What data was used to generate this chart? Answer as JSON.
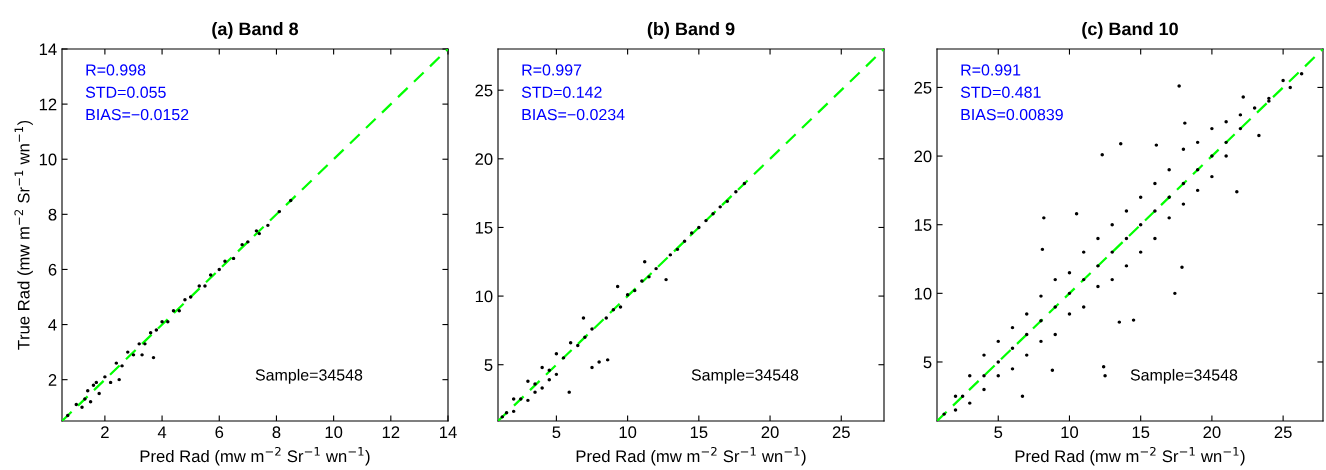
{
  "chart_data": [
    {
      "type": "scatter",
      "title": "(a) Band 8",
      "xlabel": "Pred Rad (mw m$^{−2}$ Sr$^{−1}$ wn$^{−1}$)",
      "ylabel": "True Rad (mw m$^{−2}$ Sr$^{−1}$ wn$^{−1}$)",
      "xlim": [
        0.5,
        14
      ],
      "ylim": [
        0.5,
        14
      ],
      "xticks": [
        2,
        4,
        6,
        8,
        10,
        12,
        14
      ],
      "yticks": [
        2,
        4,
        6,
        8,
        10,
        12,
        14
      ],
      "grid": false,
      "legend": false,
      "annotations": [
        "R=0.998",
        "STD=0.055",
        "BIAS=−0.0152",
        "Sample=34548"
      ],
      "series": [
        {
          "type": "scatter",
          "marker": "circle",
          "color": "#000000",
          "x": [
            0.7,
            1.0,
            1.2,
            1.3,
            1.4,
            1.5,
            1.6,
            1.7,
            1.8,
            2.0,
            2.2,
            2.4,
            2.5,
            2.6,
            2.8,
            3.0,
            3.2,
            3.3,
            3.4,
            3.6,
            3.7,
            3.8,
            4.0,
            4.2,
            4.4,
            4.6,
            4.8,
            5.0,
            5.3,
            5.5,
            5.7,
            6.0,
            6.2,
            6.5,
            6.8,
            7.0,
            7.3,
            7.4,
            7.7,
            8.1,
            8.5
          ],
          "values": [
            0.7,
            1.1,
            1.0,
            1.3,
            1.6,
            1.2,
            1.8,
            1.9,
            1.5,
            2.1,
            1.9,
            2.6,
            2.0,
            2.5,
            3.0,
            2.9,
            3.3,
            2.9,
            3.3,
            3.7,
            2.8,
            3.8,
            4.1,
            4.1,
            4.5,
            4.5,
            4.9,
            5.0,
            5.4,
            5.4,
            5.8,
            6.0,
            6.3,
            6.4,
            6.9,
            7.0,
            7.4,
            7.3,
            7.6,
            8.1,
            8.5
          ]
        },
        {
          "type": "line",
          "color": "#00ff00",
          "line_style": "dashed",
          "x": [
            0.5,
            14
          ],
          "values": [
            0.5,
            14
          ]
        }
      ]
    },
    {
      "type": "scatter",
      "title": "(b) Band 9",
      "xlabel": "Pred Rad (mw m$^{−2}$ Sr$^{−1}$ wn$^{−1}$)",
      "xlim": [
        0.9,
        28
      ],
      "ylim": [
        0.9,
        28
      ],
      "xticks": [
        5,
        10,
        15,
        20,
        25
      ],
      "yticks": [
        5,
        10,
        15,
        20,
        25
      ],
      "grid": false,
      "legend": false,
      "annotations": [
        "R=0.997",
        "STD=0.142",
        "BIAS=−0.0234",
        "Sample=34548"
      ],
      "series": [
        {
          "type": "scatter",
          "marker": "circle",
          "color": "#000000",
          "x": [
            1.2,
            1.5,
            2.0,
            2.0,
            2.5,
            3.0,
            3.0,
            3.5,
            3.5,
            4.0,
            4.0,
            4.5,
            4.5,
            5.0,
            5.0,
            5.5,
            5.9,
            6.0,
            6.5,
            6.9,
            7.0,
            7.5,
            7.5,
            8.0,
            8.6,
            8.5,
            9.0,
            9.3,
            9.5,
            10.0,
            10.5,
            11.0,
            11.2,
            11.5,
            12.0,
            12.7,
            13.0,
            13.5,
            14.0,
            14.5,
            15.0,
            15.5,
            16.0,
            16.5,
            17.0,
            17.6,
            18.2
          ],
          "values": [
            1.2,
            1.5,
            2.5,
            1.6,
            2.5,
            3.8,
            2.4,
            3.6,
            3.0,
            4.8,
            3.3,
            4.6,
            3.9,
            5.8,
            4.3,
            5.5,
            3.0,
            6.6,
            6.4,
            8.4,
            7.0,
            7.6,
            4.8,
            5.2,
            5.35,
            8.4,
            9.0,
            10.7,
            9.2,
            10.1,
            10.4,
            11.1,
            12.5,
            11.4,
            12.0,
            11.2,
            13.0,
            13.4,
            14.0,
            14.6,
            15.0,
            15.5,
            16.0,
            16.5,
            16.9,
            17.6,
            18.2
          ]
        },
        {
          "type": "line",
          "color": "#00ff00",
          "line_style": "dashed",
          "x": [
            0.9,
            28
          ],
          "values": [
            0.9,
            28
          ]
        }
      ]
    },
    {
      "type": "scatter",
      "title": "(c) Band 10",
      "xlabel": "Pred Rad (mw m$^{−2}$ Sr$^{−1}$ wn$^{−1}$)",
      "xlim": [
        0.7,
        27.8
      ],
      "ylim": [
        0.7,
        27.8
      ],
      "xticks": [
        5,
        10,
        15,
        20,
        25
      ],
      "yticks": [
        5,
        10,
        15,
        20,
        25
      ],
      "grid": false,
      "legend": false,
      "annotations": [
        "R=0.991",
        "STD=0.481",
        "BIAS=0.00839",
        "Sample=34548"
      ],
      "series": [
        {
          "type": "scatter",
          "marker": "circle",
          "color": "#000000",
          "x": [
            1.2,
            2,
            2,
            2.5,
            3,
            3,
            4,
            4,
            4,
            5,
            5,
            5,
            6,
            6,
            6,
            6.7,
            7,
            7,
            7,
            8,
            8,
            8,
            8.1,
            8.2,
            8.8,
            9,
            9,
            9,
            10,
            10,
            10,
            10.5,
            11,
            11,
            11,
            12,
            12,
            12,
            12.3,
            12.4,
            12.5,
            13,
            13,
            13,
            13.5,
            13.6,
            14,
            14,
            14,
            14.5,
            15,
            15,
            15,
            16,
            16,
            16,
            16.1,
            17,
            17,
            17,
            17.4,
            17.7,
            17.9,
            18,
            18,
            18,
            18.1,
            19,
            19,
            19,
            20,
            20,
            20,
            21,
            21,
            21,
            21.75,
            22,
            22,
            22.2,
            23,
            23.3,
            24,
            24,
            25,
            25.5,
            26.3
          ],
          "values": [
            1.2,
            2.5,
            1.5,
            2.5,
            4,
            2,
            5.5,
            3,
            4,
            6.5,
            4,
            5,
            7.5,
            4.5,
            6,
            2.5,
            8.5,
            5.5,
            7,
            9.8,
            6.5,
            8,
            13.2,
            15.5,
            4.4,
            11,
            7,
            9,
            11.5,
            8.5,
            10,
            15.8,
            13,
            9,
            11,
            14,
            10.5,
            12,
            20.1,
            4.65,
            4.0,
            15,
            11,
            13,
            7.9,
            20.9,
            16,
            12,
            14,
            8.05,
            17,
            13,
            15,
            18,
            14,
            16,
            20.8,
            19,
            15.5,
            17,
            10.0,
            25.1,
            11.9,
            20.5,
            16.5,
            18,
            22.4,
            21,
            17.5,
            19,
            22,
            18.5,
            20,
            22.5,
            20,
            21,
            17.4,
            23,
            22,
            24.3,
            23.5,
            21.5,
            24.2,
            24,
            25.5,
            25,
            26.0
          ]
        },
        {
          "type": "line",
          "color": "#00ff00",
          "line_style": "dashed",
          "x": [
            0.7,
            27.8
          ],
          "values": [
            0.7,
            27.8
          ]
        }
      ]
    }
  ]
}
